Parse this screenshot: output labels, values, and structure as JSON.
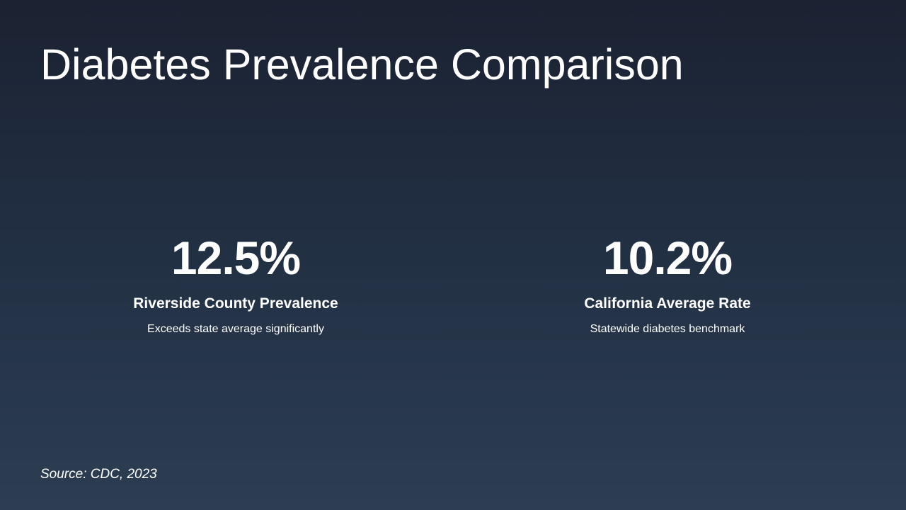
{
  "title": "Diabetes Prevalence Comparison",
  "stats": [
    {
      "value": "12.5%",
      "label": "Riverside County Prevalence",
      "description": "Exceeds state average significantly"
    },
    {
      "value": "10.2%",
      "label": "California Average Rate",
      "description": "Statewide diabetes benchmark"
    }
  ],
  "source": "Source: CDC, 2023",
  "colors": {
    "background_top": "#1b2232",
    "background_bottom": "#2d3e52",
    "text": "#ffffff"
  }
}
